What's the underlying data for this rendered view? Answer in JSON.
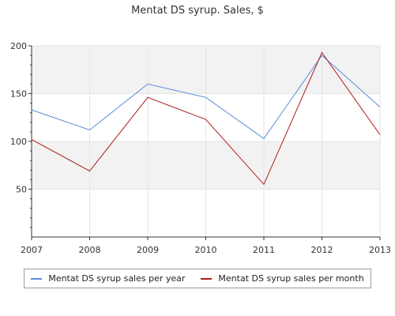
{
  "chart_data": {
    "type": "line",
    "title": "Mentat DS syrup. Sales, $",
    "x": [
      "2007",
      "2008",
      "2009",
      "2010",
      "2011",
      "2012",
      "2013"
    ],
    "series": [
      {
        "name": "Mentat DS syrup sales per year",
        "color": "#5b8bd9",
        "values": [
          133,
          112,
          160,
          146,
          103,
          190,
          136
        ]
      },
      {
        "name": "Mentat DS syrup sales per month",
        "color": "#b01818",
        "values": [
          102,
          69,
          146,
          123,
          55,
          193,
          107
        ]
      }
    ],
    "y_ticks": [
      "50",
      "100",
      "150",
      "200"
    ],
    "ylim": [
      0,
      200
    ],
    "grid": true,
    "legend_position": "bottom"
  }
}
